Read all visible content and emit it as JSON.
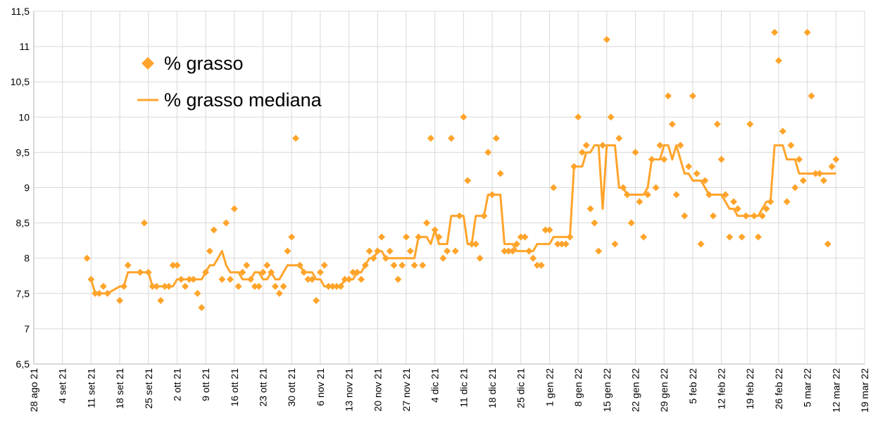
{
  "chart_data": {
    "type": "scatter",
    "x": [
      "2021-09-10",
      "2021-09-11",
      "2021-09-12",
      "2021-09-13",
      "2021-09-14",
      "2021-09-15",
      "2021-09-18",
      "2021-09-19",
      "2021-09-20",
      "2021-09-23",
      "2021-09-24",
      "2021-09-25",
      "2021-09-26",
      "2021-09-27",
      "2021-09-28",
      "2021-09-29",
      "2021-09-30",
      "2021-10-01",
      "2021-10-02",
      "2021-10-03",
      "2021-10-04",
      "2021-10-05",
      "2021-10-06",
      "2021-10-07",
      "2021-10-08",
      "2021-10-09",
      "2021-10-10",
      "2021-10-11",
      "2021-10-13",
      "2021-10-14",
      "2021-10-15",
      "2021-10-16",
      "2021-10-17",
      "2021-10-18",
      "2021-10-19",
      "2021-10-20",
      "2021-10-21",
      "2021-10-22",
      "2021-10-23",
      "2021-10-24",
      "2021-10-25",
      "2021-10-26",
      "2021-10-27",
      "2021-10-28",
      "2021-10-29",
      "2021-10-30",
      "2021-10-31",
      "2021-11-01",
      "2021-11-02",
      "2021-11-03",
      "2021-11-04",
      "2021-11-05",
      "2021-11-06",
      "2021-11-07",
      "2021-11-08",
      "2021-11-09",
      "2021-11-10",
      "2021-11-11",
      "2021-11-12",
      "2021-11-13",
      "2021-11-14",
      "2021-11-15",
      "2021-11-16",
      "2021-11-17",
      "2021-11-18",
      "2021-11-19",
      "2021-11-20",
      "2021-11-21",
      "2021-11-22",
      "2021-11-23",
      "2021-11-24",
      "2021-11-25",
      "2021-11-26",
      "2021-11-27",
      "2021-11-28",
      "2021-11-29",
      "2021-11-30",
      "2021-12-01",
      "2021-12-02",
      "2021-12-03",
      "2021-12-04",
      "2021-12-05",
      "2021-12-06",
      "2021-12-07",
      "2021-12-08",
      "2021-12-09",
      "2021-12-10",
      "2021-12-11",
      "2021-12-12",
      "2021-12-13",
      "2021-12-14",
      "2021-12-15",
      "2021-12-16",
      "2021-12-17",
      "2021-12-18",
      "2021-12-19",
      "2021-12-20",
      "2021-12-21",
      "2021-12-22",
      "2021-12-23",
      "2021-12-24",
      "2021-12-25",
      "2021-12-26",
      "2021-12-27",
      "2021-12-28",
      "2021-12-29",
      "2021-12-30",
      "2021-12-31",
      "2022-01-01",
      "2022-01-02",
      "2022-01-03",
      "2022-01-04",
      "2022-01-05",
      "2022-01-06",
      "2022-01-07",
      "2022-01-08",
      "2022-01-09",
      "2022-01-10",
      "2022-01-11",
      "2022-01-12",
      "2022-01-13",
      "2022-01-14",
      "2022-01-15",
      "2022-01-16",
      "2022-01-17",
      "2022-01-18",
      "2022-01-19",
      "2022-01-20",
      "2022-01-21",
      "2022-01-22",
      "2022-01-23",
      "2022-01-24",
      "2022-01-25",
      "2022-01-26",
      "2022-01-27",
      "2022-01-28",
      "2022-01-29",
      "2022-01-30",
      "2022-01-31",
      "2022-02-01",
      "2022-02-02",
      "2022-02-03",
      "2022-02-04",
      "2022-02-05",
      "2022-02-06",
      "2022-02-07",
      "2022-02-08",
      "2022-02-09",
      "2022-02-10",
      "2022-02-11",
      "2022-02-12",
      "2022-02-13",
      "2022-02-14",
      "2022-02-15",
      "2022-02-16",
      "2022-02-17",
      "2022-02-18",
      "2022-02-19",
      "2022-02-20",
      "2022-02-21",
      "2022-02-22",
      "2022-02-23",
      "2022-02-24",
      "2022-02-25",
      "2022-02-26",
      "2022-02-27",
      "2022-02-28",
      "2022-03-01",
      "2022-03-02",
      "2022-03-03",
      "2022-03-04",
      "2022-03-05",
      "2022-03-06",
      "2022-03-07",
      "2022-03-08",
      "2022-03-09",
      "2022-03-10",
      "2022-03-11",
      "2022-03-12"
    ],
    "series": [
      {
        "name": "% grasso",
        "kind": "markers",
        "color": "#ffa42b",
        "values": [
          8.0,
          7.7,
          7.5,
          7.5,
          7.6,
          7.5,
          7.4,
          7.6,
          7.9,
          7.8,
          8.5,
          7.8,
          7.6,
          7.6,
          7.4,
          7.6,
          7.6,
          7.9,
          7.9,
          7.7,
          7.6,
          7.7,
          7.7,
          7.5,
          7.3,
          7.8,
          8.1,
          8.4,
          7.7,
          8.5,
          7.7,
          8.7,
          7.6,
          7.8,
          7.9,
          7.7,
          7.6,
          7.6,
          7.8,
          7.9,
          7.8,
          7.6,
          7.5,
          7.6,
          8.1,
          8.3,
          9.7,
          7.9,
          7.8,
          7.7,
          7.7,
          7.4,
          7.8,
          7.9,
          7.6,
          7.6,
          7.6,
          7.6,
          7.7,
          7.7,
          7.8,
          7.8,
          7.7,
          7.9,
          8.1,
          8.0,
          8.1,
          8.3,
          8.0,
          8.1,
          7.9,
          7.7,
          7.9,
          8.3,
          8.1,
          7.9,
          8.3,
          7.9,
          8.5,
          9.7,
          8.4,
          8.3,
          8.0,
          8.1,
          9.7,
          8.1,
          8.6,
          10.0,
          9.1,
          8.2,
          8.2,
          8.0,
          8.6,
          9.5,
          8.9,
          9.7,
          9.2,
          8.1,
          8.1,
          8.1,
          8.2,
          8.3,
          8.3,
          8.1,
          8.0,
          7.9,
          7.9,
          8.4,
          8.4,
          9.0,
          8.2,
          8.2,
          8.2,
          8.3,
          9.3,
          10.0,
          9.5,
          9.6,
          8.7,
          8.5,
          8.1,
          9.6,
          11.1,
          10.0,
          8.2,
          9.7,
          9.0,
          8.9,
          8.5,
          9.5,
          8.8,
          8.3,
          8.9,
          9.4,
          9.0,
          9.6,
          9.4,
          10.3,
          9.9,
          8.9,
          9.6,
          8.6,
          9.3,
          10.3,
          9.2,
          8.2,
          9.1,
          8.9,
          8.6,
          9.9,
          9.4,
          8.9,
          8.3,
          8.8,
          8.7,
          8.3,
          8.6,
          9.9,
          8.6,
          8.3,
          8.6,
          8.7,
          8.8,
          11.2,
          10.8,
          9.8,
          8.8,
          9.6,
          9.0,
          9.4,
          9.1,
          11.2,
          10.3,
          9.2,
          9.2,
          9.1,
          8.2,
          9.3,
          9.4
        ]
      },
      {
        "name": "% grasso mediana",
        "kind": "line",
        "color": "#ffa42b",
        "values": [
          null,
          7.7,
          7.5,
          7.5,
          7.5,
          7.5,
          7.6,
          7.6,
          7.8,
          7.8,
          7.8,
          7.8,
          7.6,
          7.6,
          7.6,
          7.6,
          7.6,
          7.6,
          7.7,
          7.7,
          7.7,
          7.7,
          7.7,
          7.7,
          7.7,
          7.8,
          7.9,
          7.9,
          8.1,
          7.9,
          7.8,
          7.8,
          7.8,
          7.7,
          7.7,
          7.7,
          7.8,
          7.8,
          7.7,
          7.7,
          7.8,
          7.7,
          7.7,
          7.8,
          7.9,
          7.9,
          7.9,
          7.9,
          7.8,
          7.8,
          7.8,
          7.7,
          7.7,
          7.6,
          7.6,
          7.6,
          7.6,
          7.6,
          7.7,
          7.7,
          7.7,
          7.8,
          7.8,
          7.9,
          8.0,
          8.0,
          8.1,
          8.1,
          8.0,
          8.0,
          8.0,
          8.0,
          8.0,
          8.0,
          8.0,
          8.0,
          8.3,
          8.3,
          8.3,
          8.2,
          8.4,
          8.2,
          8.2,
          8.2,
          8.6,
          8.6,
          8.6,
          8.6,
          8.2,
          8.2,
          8.6,
          8.6,
          8.6,
          8.9,
          8.9,
          8.9,
          8.9,
          8.2,
          8.2,
          8.2,
          8.1,
          8.1,
          8.1,
          8.1,
          8.1,
          8.2,
          8.2,
          8.2,
          8.2,
          8.3,
          8.3,
          8.3,
          8.3,
          8.3,
          9.3,
          9.3,
          9.3,
          9.5,
          9.5,
          9.6,
          9.6,
          8.7,
          9.6,
          9.6,
          9.6,
          9.0,
          9.0,
          8.9,
          8.9,
          8.9,
          8.9,
          8.9,
          9.0,
          9.4,
          9.4,
          9.4,
          9.6,
          9.6,
          9.4,
          9.6,
          9.4,
          9.2,
          9.2,
          9.1,
          9.1,
          9.1,
          9.0,
          8.9,
          8.9,
          8.9,
          8.9,
          8.8,
          8.7,
          8.7,
          8.6,
          8.6,
          8.6,
          8.6,
          8.6,
          8.6,
          8.7,
          8.8,
          8.8,
          9.6,
          9.6,
          9.6,
          9.4,
          9.4,
          9.4,
          9.2,
          9.2,
          9.2,
          9.2,
          9.2,
          9.2,
          9.2,
          9.2,
          9.2,
          9.2
        ]
      }
    ],
    "xlim": [
      "2021-08-28",
      "2022-03-19"
    ],
    "xticks": [
      {
        "value": "2021-08-28",
        "label": "28 ago 21"
      },
      {
        "value": "2021-09-04",
        "label": "4 set 21"
      },
      {
        "value": "2021-09-11",
        "label": "11 set 21"
      },
      {
        "value": "2021-09-18",
        "label": "18 set 21"
      },
      {
        "value": "2021-09-25",
        "label": "25 set 21"
      },
      {
        "value": "2021-10-02",
        "label": "2 ott 21"
      },
      {
        "value": "2021-10-09",
        "label": "9 ott 21"
      },
      {
        "value": "2021-10-16",
        "label": "16 ott 21"
      },
      {
        "value": "2021-10-23",
        "label": "23 ott 21"
      },
      {
        "value": "2021-10-30",
        "label": "30 ott 21"
      },
      {
        "value": "2021-11-06",
        "label": "6 nov 21"
      },
      {
        "value": "2021-11-13",
        "label": "13 nov 21"
      },
      {
        "value": "2021-11-20",
        "label": "20 nov 21"
      },
      {
        "value": "2021-11-27",
        "label": "27 nov 21"
      },
      {
        "value": "2021-12-04",
        "label": "4 dic 21"
      },
      {
        "value": "2021-12-11",
        "label": "11 dic 21"
      },
      {
        "value": "2021-12-18",
        "label": "18 dic 21"
      },
      {
        "value": "2021-12-25",
        "label": "25 dic 21"
      },
      {
        "value": "2022-01-01",
        "label": "1 gen 22"
      },
      {
        "value": "2022-01-08",
        "label": "8 gen 22"
      },
      {
        "value": "2022-01-15",
        "label": "15 gen 22"
      },
      {
        "value": "2022-01-22",
        "label": "22 gen 22"
      },
      {
        "value": "2022-01-29",
        "label": "29 gen 22"
      },
      {
        "value": "2022-02-05",
        "label": "5 feb 22"
      },
      {
        "value": "2022-02-12",
        "label": "12 feb 22"
      },
      {
        "value": "2022-02-19",
        "label": "19 feb 22"
      },
      {
        "value": "2022-02-26",
        "label": "26 feb 22"
      },
      {
        "value": "2022-03-05",
        "label": "5 mar 22"
      },
      {
        "value": "2022-03-12",
        "label": "12 mar 22"
      },
      {
        "value": "2022-03-19",
        "label": "19 mar 22"
      }
    ],
    "ylim": [
      6.5,
      11.5
    ],
    "yticks": [
      {
        "value": 6.5,
        "label": "6,5"
      },
      7,
      {
        "value": 7.5,
        "label": "7,5"
      },
      8,
      {
        "value": 8.5,
        "label": "8,5"
      },
      9,
      {
        "value": 9.5,
        "label": "9,5"
      },
      10,
      {
        "value": 10.5,
        "label": "10,5"
      },
      11,
      {
        "value": 11.5,
        "label": "11,5"
      }
    ],
    "grid": true,
    "legend": "top-left"
  }
}
